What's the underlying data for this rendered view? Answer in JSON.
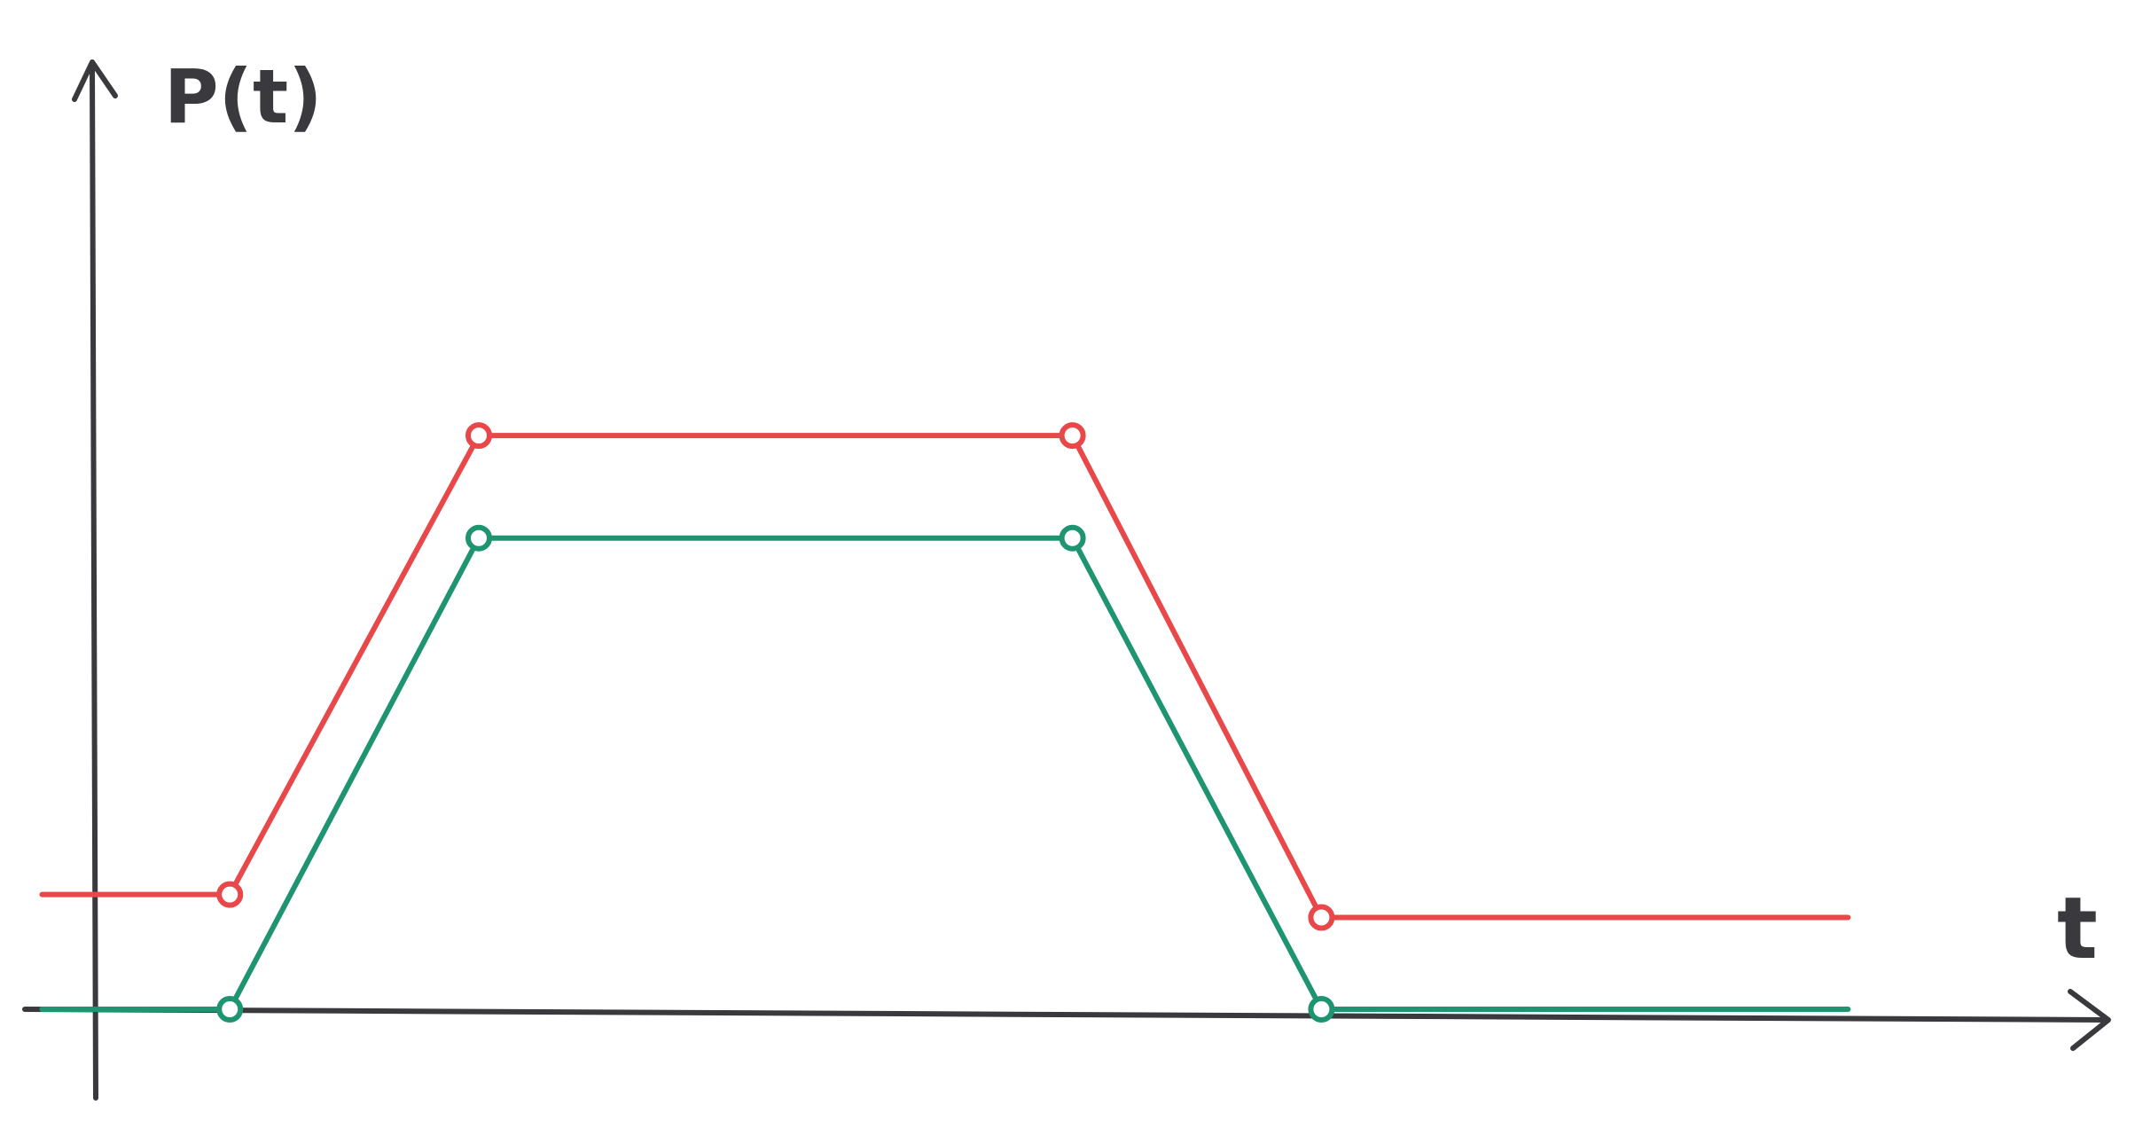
{
  "chart_data": {
    "type": "line",
    "title": "",
    "xlabel": "t",
    "ylabel": "P(t)",
    "grid": false,
    "legend": "none",
    "xlim": [
      0,
      10
    ],
    "ylim": [
      0,
      4
    ],
    "series": [
      {
        "color": "#e8484a",
        "x": [
          -0.28,
          0.7,
          2.0,
          5.1,
          6.4,
          9.15
        ],
        "y": [
          0.75,
          0.75,
          3.75,
          3.75,
          0.6,
          0.6
        ],
        "marker_indices": [
          1,
          2,
          3,
          4
        ]
      },
      {
        "color": "#1e9470",
        "x": [
          -0.28,
          0.7,
          2.0,
          5.1,
          6.4,
          9.15
        ],
        "y": [
          0.0,
          0.0,
          3.08,
          3.08,
          0.0,
          0.0
        ],
        "marker_indices": [
          1,
          2,
          3,
          4
        ]
      }
    ]
  }
}
